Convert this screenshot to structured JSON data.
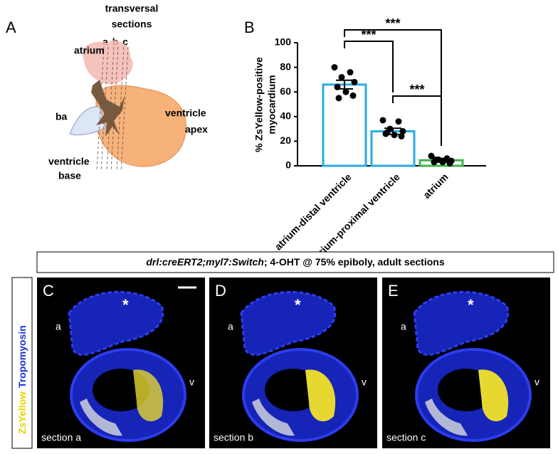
{
  "panel_a": {
    "label": "A",
    "title": [
      "transversal",
      "sections"
    ],
    "sections": [
      "a",
      "b",
      "c"
    ],
    "atrium": "atrium",
    "ba": "ba",
    "ventricle_apex": [
      "ventricle",
      "apex"
    ],
    "ventricle_base": [
      "ventricle",
      "base"
    ]
  },
  "chart_data": {
    "type": "bar",
    "panel_label": "B",
    "y_label": [
      "% ZsYellow-positive",
      "myocardium"
    ],
    "categories": [
      "atrium-distal ventricle",
      "atrium-proximal ventricle",
      "atrium"
    ],
    "values": [
      66,
      28,
      4.5
    ],
    "errors": [
      3.5,
      2.5,
      1.5
    ],
    "colors": [
      "#29abe2",
      "#29abe2",
      "#3cb44b"
    ],
    "points": [
      [
        80,
        76,
        72,
        68,
        64,
        60,
        57,
        55
      ],
      [
        37,
        36,
        30,
        28,
        26,
        25,
        24,
        27
      ],
      [
        8,
        6,
        5,
        4,
        3,
        3,
        2,
        5
      ]
    ],
    "annotations": [
      "***",
      "***",
      "***"
    ],
    "ylim": [
      0,
      100
    ],
    "yticks": [
      0,
      20,
      40,
      60,
      80,
      100
    ]
  },
  "panel_header": {
    "italic": "drl:creERT2;myl7:Switch",
    "rest": "; 4-OHT @ 75% epiboly, adult sections"
  },
  "side_label": [
    "ZsYellow",
    "Tropomyosin"
  ],
  "images": [
    {
      "panel": "C",
      "section": "section a",
      "atrium": "a",
      "ventricle": "v",
      "marker": "*"
    },
    {
      "panel": "D",
      "section": "section b",
      "atrium": "a",
      "ventricle": "v",
      "marker": "*"
    },
    {
      "panel": "E",
      "section": "section c",
      "atrium": "a",
      "ventricle": "v",
      "marker": "*"
    }
  ]
}
